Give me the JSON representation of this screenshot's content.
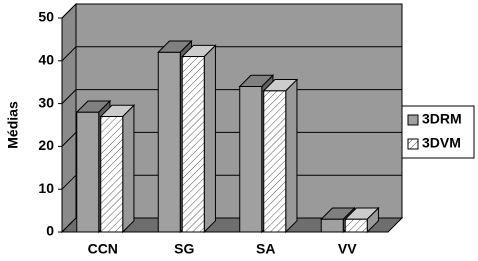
{
  "chart_data": {
    "type": "bar3d",
    "y_label": "Médias",
    "categories": [
      "CCN",
      "SG",
      "SA",
      "VV"
    ],
    "series": [
      {
        "name": "3DRM",
        "color": "#a0a0a0",
        "values": [
          28,
          42,
          34,
          3
        ]
      },
      {
        "name": "3DVM",
        "color": "#ffffff",
        "values": [
          27,
          41,
          33,
          3
        ]
      }
    ],
    "ylim": [
      0,
      50
    ],
    "yticks": [
      0,
      10,
      20,
      30,
      40,
      50
    ],
    "grid": true,
    "legend": "right"
  }
}
